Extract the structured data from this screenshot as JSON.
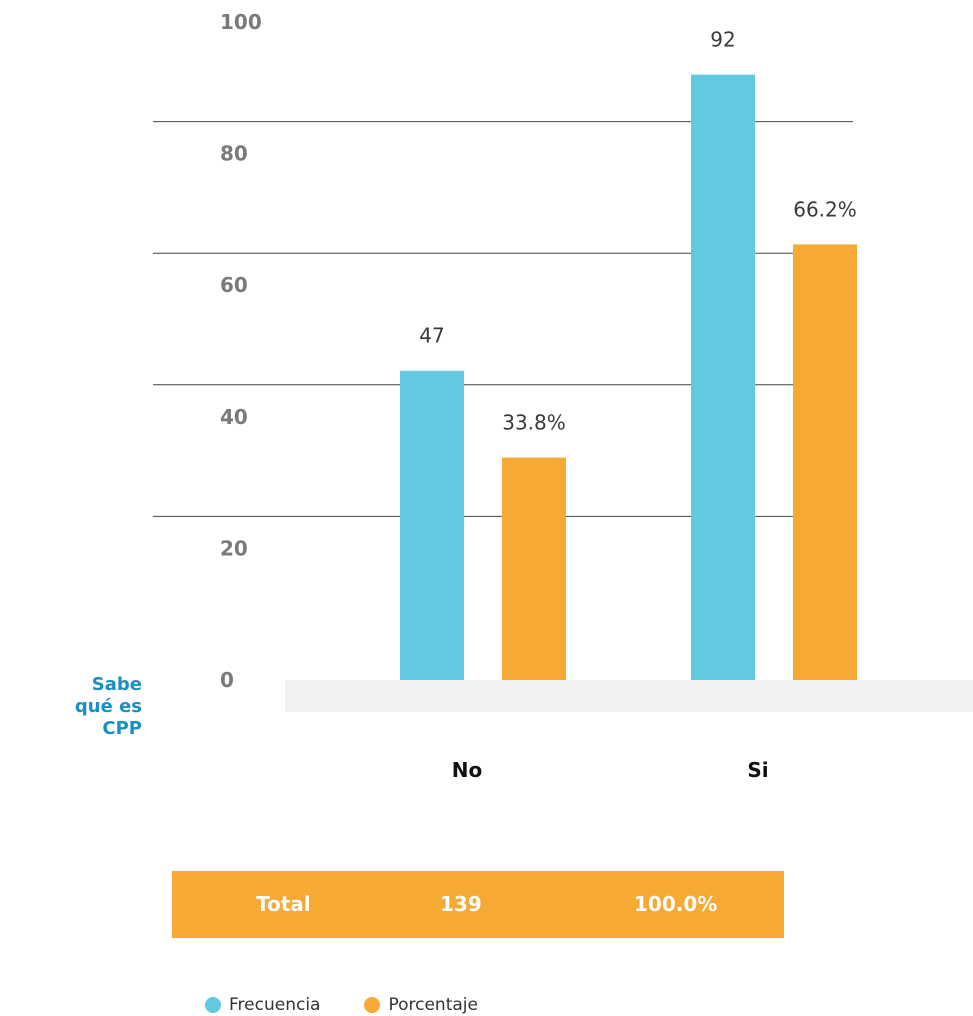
{
  "chart_data": {
    "type": "bar",
    "categories": [
      "No",
      "Si"
    ],
    "series": [
      {
        "name": "Frecuencia",
        "values": [
          47,
          92
        ],
        "labels": [
          "47",
          "92"
        ]
      },
      {
        "name": "Porcentaje",
        "values": [
          33.8,
          66.2
        ],
        "labels": [
          "33.8%",
          "66.2%"
        ]
      }
    ],
    "yticks": [
      "0",
      "20",
      "40",
      "60",
      "80",
      "100"
    ],
    "ylim": [
      0,
      100
    ],
    "ylabel": "Sabe qué es CPP",
    "grid": true,
    "legend_position": "bottom"
  },
  "colors": {
    "frecuencia": "#62c9e1",
    "porcentaje": "#f6a933",
    "grid": "#444444",
    "baseline_band": "#f2f2f4",
    "axis_title": "#1a8fc2"
  },
  "total_row": {
    "label": "Total",
    "frequency": "139",
    "percentage": "100.0%"
  },
  "legend": {
    "items": [
      "Frecuencia",
      "Porcentaje"
    ]
  }
}
